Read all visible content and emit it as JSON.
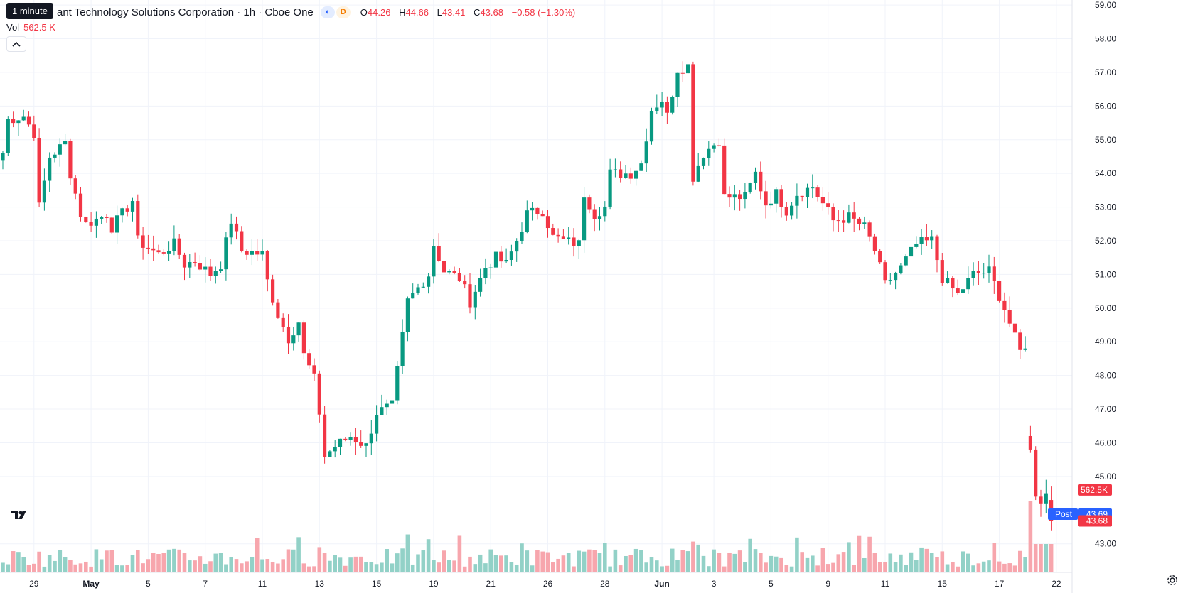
{
  "header": {
    "tooltip": "1 minute",
    "title": "ant Technology Solutions Corporation · 1h · Cboe One",
    "badge_c": "◐",
    "badge_d": "D",
    "ohlc": {
      "o_label": "O",
      "o": "44.26",
      "h_label": "H",
      "h": "44.66",
      "l_label": "L",
      "l": "43.41",
      "c_label": "C",
      "c": "43.68",
      "change": "−0.58 (−1.30%)"
    },
    "vol_label": "Vol",
    "vol_value": "562.5 K",
    "collapse_icon": "chevron-up-icon"
  },
  "colors": {
    "up": "#089981",
    "down": "#f23645",
    "up_vol": "#92d1c7",
    "down_vol": "#f7a6ad",
    "grid": "#f0f3fa",
    "post": "#2962ff"
  },
  "price_labels": {
    "volume": "562.5K",
    "post_label": "Post",
    "post_price": "43.69",
    "last_price": "43.68"
  },
  "chart_data": {
    "type": "candlestick",
    "ylim": [
      42.15,
      59.15
    ],
    "y_ticks": [
      "59.00",
      "58.00",
      "57.00",
      "56.00",
      "55.00",
      "54.00",
      "53.00",
      "52.00",
      "51.00",
      "50.00",
      "49.00",
      "48.00",
      "47.00",
      "46.00",
      "45.00",
      "43.00"
    ],
    "x_ticks": [
      {
        "label": "29",
        "bold": false
      },
      {
        "label": "May",
        "bold": true
      },
      {
        "label": "5",
        "bold": false
      },
      {
        "label": "7",
        "bold": false
      },
      {
        "label": "11",
        "bold": false
      },
      {
        "label": "13",
        "bold": false
      },
      {
        "label": "15",
        "bold": false
      },
      {
        "label": "19",
        "bold": false
      },
      {
        "label": "21",
        "bold": false
      },
      {
        "label": "26",
        "bold": false
      },
      {
        "label": "28",
        "bold": false
      },
      {
        "label": "Jun",
        "bold": true
      },
      {
        "label": "3",
        "bold": false
      },
      {
        "label": "5",
        "bold": false
      },
      {
        "label": "9",
        "bold": false
      },
      {
        "label": "11",
        "bold": false
      },
      {
        "label": "15",
        "bold": false
      },
      {
        "label": "17",
        "bold": false
      },
      {
        "label": "22",
        "bold": false
      }
    ],
    "x_tick_index": [
      6,
      17,
      28,
      39,
      50,
      61,
      72,
      83,
      94,
      105,
      116,
      127,
      137,
      148,
      159,
      170,
      181,
      192,
      203
    ],
    "n_bars": 206,
    "anchors": [
      [
        0,
        54.6
      ],
      [
        1,
        55.6
      ],
      [
        4,
        55.7
      ],
      [
        6,
        55.2
      ],
      [
        7,
        53.0
      ],
      [
        9,
        54.5
      ],
      [
        12,
        54.9
      ],
      [
        13,
        54.0
      ],
      [
        15,
        52.8
      ],
      [
        16,
        52.5
      ],
      [
        19,
        52.7
      ],
      [
        20,
        52.8
      ],
      [
        21,
        52.4
      ],
      [
        25,
        53.2
      ],
      [
        26,
        52.0
      ],
      [
        30,
        51.6
      ],
      [
        33,
        51.9
      ],
      [
        35,
        51.3
      ],
      [
        37,
        51.4
      ],
      [
        40,
        51.0
      ],
      [
        42,
        51.3
      ],
      [
        44,
        52.6
      ],
      [
        46,
        51.7
      ],
      [
        50,
        51.6
      ],
      [
        51,
        50.8
      ],
      [
        53,
        49.8
      ],
      [
        55,
        49.1
      ],
      [
        57,
        49.6
      ],
      [
        58,
        48.6
      ],
      [
        60,
        47.9
      ],
      [
        61,
        46.9
      ],
      [
        62,
        45.6
      ],
      [
        64,
        45.9
      ],
      [
        67,
        46.2
      ],
      [
        70,
        45.9
      ],
      [
        72,
        46.9
      ],
      [
        75,
        47.1
      ],
      [
        78,
        50.2
      ],
      [
        80,
        50.6
      ],
      [
        82,
        51.0
      ],
      [
        83,
        51.9
      ],
      [
        85,
        51.1
      ],
      [
        88,
        50.9
      ],
      [
        90,
        50.2
      ],
      [
        93,
        51.2
      ],
      [
        95,
        51.5
      ],
      [
        97,
        51.3
      ],
      [
        99,
        52.0
      ],
      [
        101,
        52.8
      ],
      [
        104,
        52.9
      ],
      [
        106,
        52.1
      ],
      [
        108,
        52.0
      ],
      [
        111,
        51.9
      ],
      [
        112,
        53.4
      ],
      [
        114,
        52.8
      ],
      [
        116,
        53.0
      ],
      [
        117,
        54.0
      ],
      [
        121,
        54.0
      ],
      [
        123,
        54.3
      ],
      [
        125,
        55.9
      ],
      [
        127,
        56.2
      ],
      [
        128,
        55.7
      ],
      [
        130,
        57.1
      ],
      [
        132,
        57.2
      ],
      [
        133,
        53.9
      ],
      [
        135,
        54.6
      ],
      [
        138,
        55.0
      ],
      [
        139,
        53.3
      ],
      [
        143,
        53.3
      ],
      [
        145,
        54.0
      ],
      [
        147,
        53.1
      ],
      [
        149,
        53.4
      ],
      [
        151,
        52.9
      ],
      [
        153,
        53.4
      ],
      [
        156,
        53.6
      ],
      [
        158,
        53.1
      ],
      [
        160,
        52.6
      ],
      [
        163,
        52.7
      ],
      [
        166,
        52.4
      ],
      [
        168,
        51.7
      ],
      [
        170,
        50.7
      ],
      [
        173,
        51.2
      ],
      [
        176,
        51.9
      ],
      [
        179,
        52.0
      ],
      [
        181,
        50.9
      ],
      [
        184,
        50.4
      ],
      [
        187,
        51.0
      ],
      [
        190,
        51.1
      ],
      [
        193,
        50.0
      ],
      [
        195,
        49.1
      ],
      [
        196,
        48.7
      ],
      [
        197,
        48.8
      ]
    ],
    "post_bars": [
      {
        "i": 198,
        "o": 46.2,
        "h": 46.5,
        "l": 45.7,
        "c": 45.8
      },
      {
        "i": 199,
        "o": 45.8,
        "h": 45.9,
        "l": 44.3,
        "c": 44.4
      },
      {
        "i": 200,
        "o": 44.4,
        "h": 44.6,
        "l": 43.8,
        "c": 44.2
      },
      {
        "i": 201,
        "o": 44.2,
        "h": 44.9,
        "l": 43.9,
        "c": 44.5
      },
      {
        "i": 202,
        "o": 44.3,
        "h": 44.7,
        "l": 43.4,
        "c": 43.68
      }
    ]
  }
}
